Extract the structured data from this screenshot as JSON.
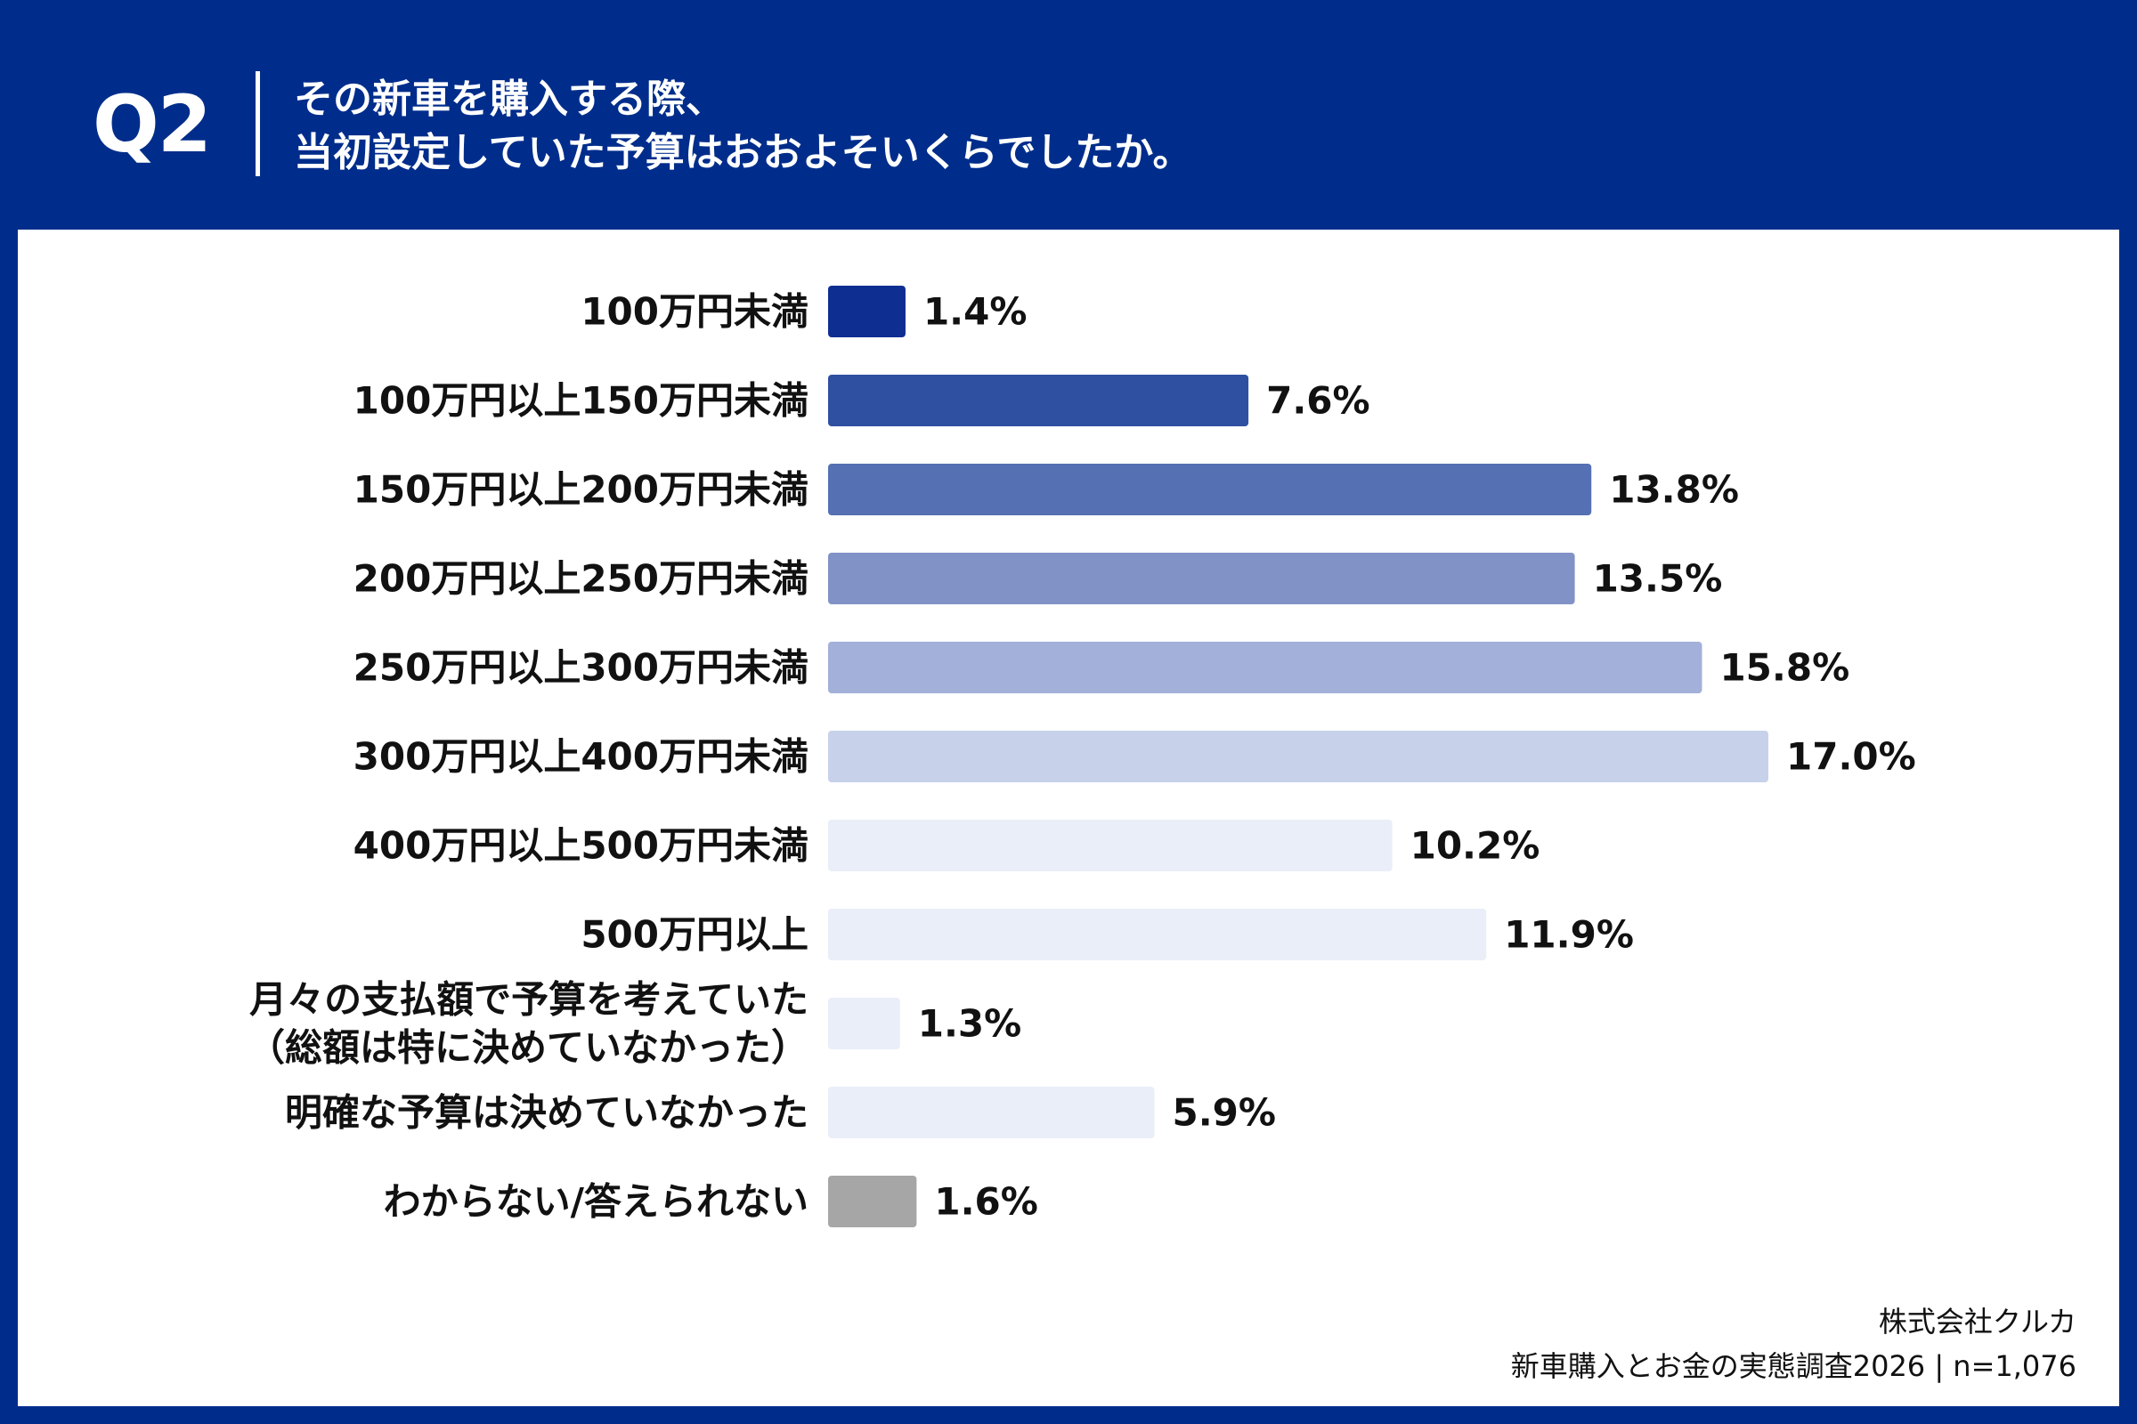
{
  "header": {
    "q_label": "Q2",
    "question_line1": "その新車を購入する際、",
    "question_line2": "当初設定していた予算はおおよそいくらでしたか。"
  },
  "colors": {
    "background": "#002d8b",
    "bars": [
      "#0f2e91",
      "#2f4fa0",
      "#5570b3",
      "#8192c6",
      "#a3b0d9",
      "#c7d1ea",
      "#e9eef8",
      "#e9eef8",
      "#e9eef8",
      "#e9eef8",
      "#a6a6a6"
    ]
  },
  "chart_data": {
    "type": "bar",
    "orientation": "horizontal",
    "title": "その新車を購入する際、当初設定していた予算はおおよそいくらでしたか。",
    "unit": "%",
    "categories": [
      [
        "100万円未満"
      ],
      [
        "100万円以上150万円未満"
      ],
      [
        "150万円以上200万円未満"
      ],
      [
        "200万円以上250万円未満"
      ],
      [
        "250万円以上300万円未満"
      ],
      [
        "300万円以上400万円未満"
      ],
      [
        "400万円以上500万円未満"
      ],
      [
        "500万円以上"
      ],
      [
        "月々の支払額で予算を考えていた",
        "（総額は特に決めていなかった）"
      ],
      [
        "明確な予算は決めていなかった"
      ],
      [
        "わからない/答えられない"
      ]
    ],
    "values": [
      1.4,
      7.6,
      13.8,
      13.5,
      15.8,
      17.0,
      10.2,
      11.9,
      1.3,
      5.9,
      1.6
    ],
    "value_labels": [
      "1.4%",
      "7.6%",
      "13.8%",
      "13.5%",
      "15.8%",
      "17.0%",
      "10.2%",
      "11.9%",
      "1.3%",
      "5.9%",
      "1.6%"
    ],
    "xlim": [
      0,
      17.0
    ]
  },
  "source": {
    "company": "株式会社クルカ",
    "survey": "新車購入とお金の実態調査2026 | n=1,076"
  }
}
